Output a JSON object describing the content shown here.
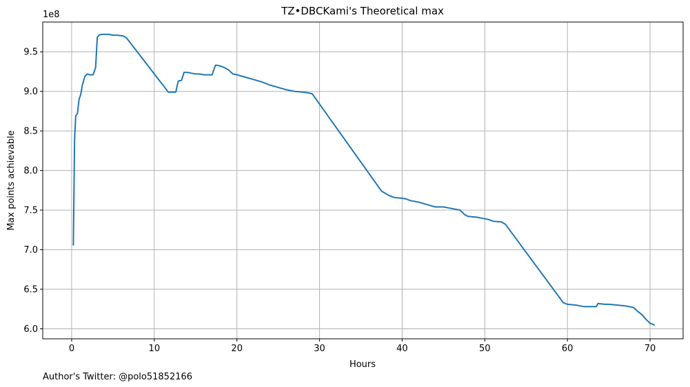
{
  "chart_data": {
    "type": "line",
    "title": "TZ•DBCKami's Theoretical max",
    "xlabel": "Hours",
    "ylabel": "Max points achievable",
    "y_offset_label": "1e8",
    "xlim": [
      -3.5,
      74.0
    ],
    "ylim": [
      5.874,
      9.876
    ],
    "xticks": [
      0,
      10,
      20,
      30,
      40,
      50,
      60,
      70
    ],
    "yticks": [
      6.0,
      6.5,
      7.0,
      7.5,
      8.0,
      8.5,
      9.0,
      9.5
    ],
    "xtick_labels": [
      "0",
      "10",
      "20",
      "30",
      "40",
      "50",
      "60",
      "70"
    ],
    "ytick_labels": [
      "6.0",
      "6.5",
      "7.0",
      "7.5",
      "8.0",
      "8.5",
      "9.0",
      "9.5"
    ],
    "grid": true,
    "line_color": "#1f77b4",
    "series": [
      {
        "x": [
          0.2,
          0.35,
          0.5,
          0.7,
          0.9,
          1.1,
          1.3,
          1.6,
          1.9,
          2.2,
          2.6,
          2.9,
          3.1,
          3.3,
          3.6,
          4.0,
          4.5,
          5.0,
          5.5,
          6.2,
          6.6,
          11.7,
          12.0,
          12.6,
          12.9,
          13.3,
          13.6,
          14.0,
          14.5,
          15.0,
          15.5,
          16.0,
          16.5,
          17.0,
          17.4,
          17.6,
          18.0,
          18.5,
          19.0,
          19.5,
          20.0,
          21.0,
          22.0,
          23.0,
          24.0,
          25.0,
          26.0,
          27.0,
          28.0,
          28.7,
          29.1,
          37.5,
          38.3,
          39.0,
          40.0,
          40.5,
          41.0,
          42.0,
          43.0,
          44.0,
          45.0,
          46.0,
          47.0,
          47.6,
          48.0,
          49.0,
          50.0,
          50.5,
          51.0,
          52.0,
          52.5,
          59.5,
          60.0,
          61.0,
          62.0,
          63.0,
          63.5,
          63.7,
          64.5,
          65.0,
          66.0,
          67.0,
          68.0,
          68.5,
          69.0,
          69.5,
          70.0,
          70.5
        ],
        "y": [
          7.06,
          8.4,
          8.69,
          8.72,
          8.9,
          8.96,
          9.08,
          9.19,
          9.22,
          9.21,
          9.21,
          9.3,
          9.68,
          9.71,
          9.72,
          9.72,
          9.72,
          9.71,
          9.71,
          9.7,
          9.68,
          8.99,
          8.99,
          8.99,
          9.13,
          9.14,
          9.24,
          9.24,
          9.23,
          9.22,
          9.22,
          9.21,
          9.21,
          9.21,
          9.33,
          9.33,
          9.32,
          9.3,
          9.27,
          9.22,
          9.21,
          9.18,
          9.15,
          9.12,
          9.08,
          9.05,
          9.02,
          9.0,
          8.99,
          8.98,
          8.97,
          7.74,
          7.69,
          7.66,
          7.65,
          7.64,
          7.62,
          7.6,
          7.57,
          7.54,
          7.54,
          7.52,
          7.5,
          7.44,
          7.42,
          7.41,
          7.39,
          7.38,
          7.36,
          7.35,
          7.32,
          6.33,
          6.31,
          6.3,
          6.28,
          6.28,
          6.28,
          6.32,
          6.31,
          6.31,
          6.3,
          6.29,
          6.27,
          6.22,
          6.18,
          6.12,
          6.07,
          6.05
        ]
      }
    ]
  },
  "footer": {
    "author_text": "Author's Twitter: @polo51852166"
  }
}
